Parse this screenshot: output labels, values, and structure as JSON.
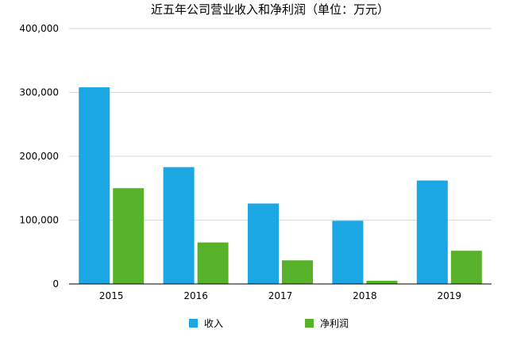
{
  "chart_data": {
    "type": "bar",
    "title": "近五年公司营业收入和净利润（单位：万元）",
    "categories": [
      "2015",
      "2016",
      "2017",
      "2018",
      "2019"
    ],
    "series": [
      {
        "name": "收入",
        "color": "#1aa7e3",
        "values": [
          308000,
          183000,
          126000,
          99000,
          162000
        ]
      },
      {
        "name": "净利润",
        "color": "#57b22a",
        "values": [
          150000,
          65000,
          37000,
          5000,
          52000
        ]
      }
    ],
    "ylim": [
      0,
      400000
    ],
    "yticks": [
      "0",
      "100,000",
      "200,000",
      "300,000",
      "400,000"
    ],
    "ytick_values": [
      0,
      100000,
      200000,
      300000,
      400000
    ],
    "grid": true,
    "legend_position": "bottom"
  }
}
